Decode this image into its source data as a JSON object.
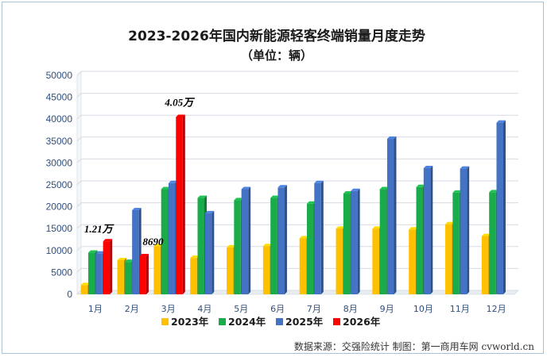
{
  "chart_data": {
    "type": "bar",
    "title": "2023-2026年国内新能源轻客终端销量月度走势",
    "subtitle": "（单位：辆）",
    "categories": [
      "1月",
      "2月",
      "3月",
      "4月",
      "5月",
      "6月",
      "7月",
      "8月",
      "9月",
      "10月",
      "11月",
      "12月"
    ],
    "series": [
      {
        "name": "2023年",
        "color": "#ffc000",
        "values": [
          2100,
          7800,
          11000,
          8300,
          10700,
          11000,
          12800,
          15000,
          15000,
          14800,
          16000,
          13300
        ]
      },
      {
        "name": "2024年",
        "color": "#1aab4a",
        "values": [
          9500,
          7400,
          24000,
          22000,
          21500,
          22000,
          20700,
          23000,
          24000,
          24500,
          23200,
          23300
        ]
      },
      {
        "name": "2025年",
        "color": "#4472c4",
        "values": [
          9300,
          19200,
          25400,
          18500,
          24000,
          24400,
          25400,
          23600,
          35500,
          28800,
          28700,
          39200
        ]
      },
      {
        "name": "2026年",
        "color": "#ff0000",
        "values": [
          12100,
          8690,
          40500,
          null,
          null,
          null,
          null,
          null,
          null,
          null,
          null,
          null
        ]
      }
    ],
    "ylim": [
      0,
      50000
    ],
    "yticks": [
      0,
      5000,
      10000,
      15000,
      20000,
      25000,
      30000,
      35000,
      40000,
      45000,
      50000
    ],
    "annotations": [
      {
        "text": "1.21万",
        "category": "1月"
      },
      {
        "text": "8690",
        "category": "2月"
      },
      {
        "text": "4.05万",
        "category": "3月"
      }
    ],
    "legend_position": "bottom"
  },
  "source_text": "数据来源：交强险统计  制图：第一商用车网 cvworld.cn"
}
